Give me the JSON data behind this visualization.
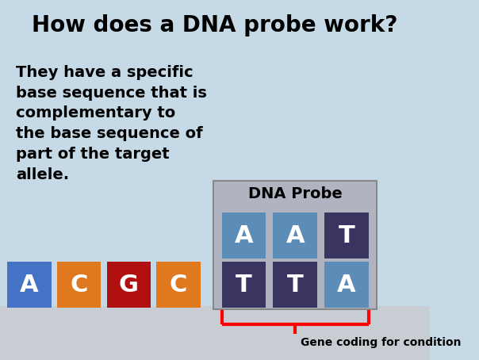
{
  "title": "How does a DNA probe work?",
  "body_text": "They have a specific\nbase sequence that is\ncomplementary to\nthe base sequence of\npart of the target\nallele.",
  "background_color": "#c5dae6",
  "bottom_bar_color": "#c8cdd4",
  "title_fontsize": 20,
  "body_fontsize": 14,
  "dna_probe_label": "DNA Probe",
  "gene_coding_label": "Gene coding for condition",
  "strand_bases": [
    {
      "letter": "A",
      "color": "#4472c4"
    },
    {
      "letter": "C",
      "color": "#e07820"
    },
    {
      "letter": "G",
      "color": "#b01010"
    },
    {
      "letter": "C",
      "color": "#e07820"
    }
  ],
  "probe_top_bases": [
    {
      "letter": "A",
      "color": "#5b8db8"
    },
    {
      "letter": "A",
      "color": "#5b8db8"
    },
    {
      "letter": "T",
      "color": "#3a3560"
    }
  ],
  "probe_bottom_bases": [
    {
      "letter": "T",
      "color": "#3a3560"
    },
    {
      "letter": "T",
      "color": "#3a3560"
    },
    {
      "letter": "A",
      "color": "#5b8db8"
    }
  ],
  "probe_box_color": "#b0b4c0",
  "probe_box_edge": "#888888"
}
